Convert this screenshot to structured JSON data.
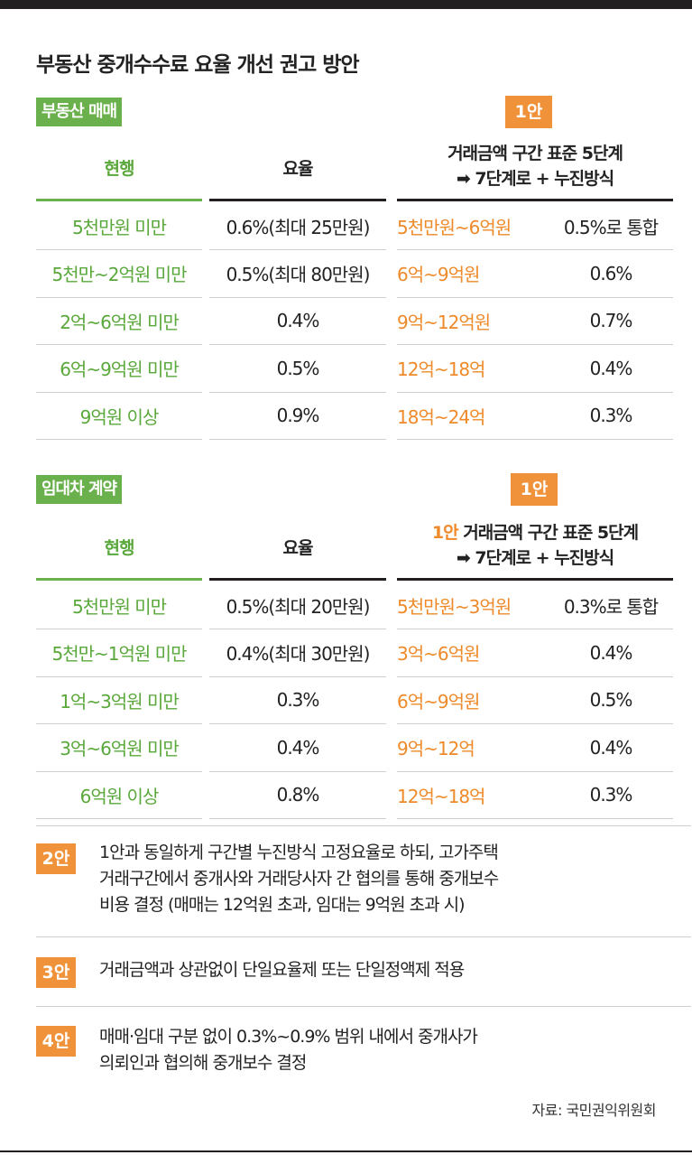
{
  "title": "부동산 중개수수료 요율 개선 권고 방안",
  "sale": {
    "label": "부동산 매매",
    "proposal_tag": "1안",
    "headers": {
      "current": "현행",
      "rate": "요율",
      "proposal_line1": "거래금액 구간 표준 5단계",
      "proposal_line2": "➡ 7단계로 + 누진방식"
    },
    "rows": [
      {
        "current": "5천만원 미만",
        "rate": "0.6%(최대 25만원)",
        "range": "5천만원~6억원",
        "new_rate": "0.5%로 통합"
      },
      {
        "current": "5천만~2억원 미만",
        "rate": "0.5%(최대 80만원)",
        "range": "6억~9억원",
        "new_rate": "0.6%"
      },
      {
        "current": "2억~6억원 미만",
        "rate": "0.4%",
        "range": "9억~12억원",
        "new_rate": "0.7%"
      },
      {
        "current": "6억~9억원 미만",
        "rate": "0.5%",
        "range": "12억~18억",
        "new_rate": "0.4%"
      },
      {
        "current": "9억원 이상",
        "rate": "0.9%",
        "range": "18억~24억",
        "new_rate": "0.3%"
      }
    ]
  },
  "lease": {
    "label": "임대차 계약",
    "proposal_tag": "1안",
    "headers": {
      "current": "현행",
      "rate": "요율",
      "proposal_prefix": "1안",
      "proposal_line1": " 거래금액 구간 표준 5단계",
      "proposal_line2": "➡ 7단계로 + 누진방식"
    },
    "rows": [
      {
        "current": "5천만원 미만",
        "rate": "0.5%(최대 20만원)",
        "range": "5천만원~3억원",
        "new_rate": "0.3%로 통합"
      },
      {
        "current": "5천만~1억원 미만",
        "rate": "0.4%(최대 30만원)",
        "range": "3억~6억원",
        "new_rate": "0.4%"
      },
      {
        "current": "1억~3억원 미만",
        "rate": "0.3%",
        "range": "6억~9억원",
        "new_rate": "0.5%"
      },
      {
        "current": "3억~6억원 미만",
        "rate": "0.4%",
        "range": "9억~12억",
        "new_rate": "0.4%"
      },
      {
        "current": "6억원 이상",
        "rate": "0.8%",
        "range": "12억~18억",
        "new_rate": "0.3%"
      }
    ]
  },
  "proposals": [
    {
      "tag": "2안",
      "lines": [
        "1안과 동일하게 구간별 누진방식 고정요율로 하되, 고가주택",
        "거래구간에서 중개사와 거래당사자 간 협의를 통해 중개보수",
        "비용 결정 (매매는 12억원 초과, 임대는 9억원 초과 시)"
      ]
    },
    {
      "tag": "3안",
      "lines": [
        "거래금액과 상관없이 단일요율제 또는 단일정액제 적용"
      ]
    },
    {
      "tag": "4안",
      "lines": [
        "매매·임대 구분 없이 0.3%~0.9% 범위 내에서 중개사가",
        "의뢰인과 협의해 중개보수 결정"
      ]
    }
  ],
  "source": "자료: 국민권익위원회",
  "colors": {
    "green": "#6ab04c",
    "orange": "#f0923a",
    "dark": "#231f20"
  }
}
